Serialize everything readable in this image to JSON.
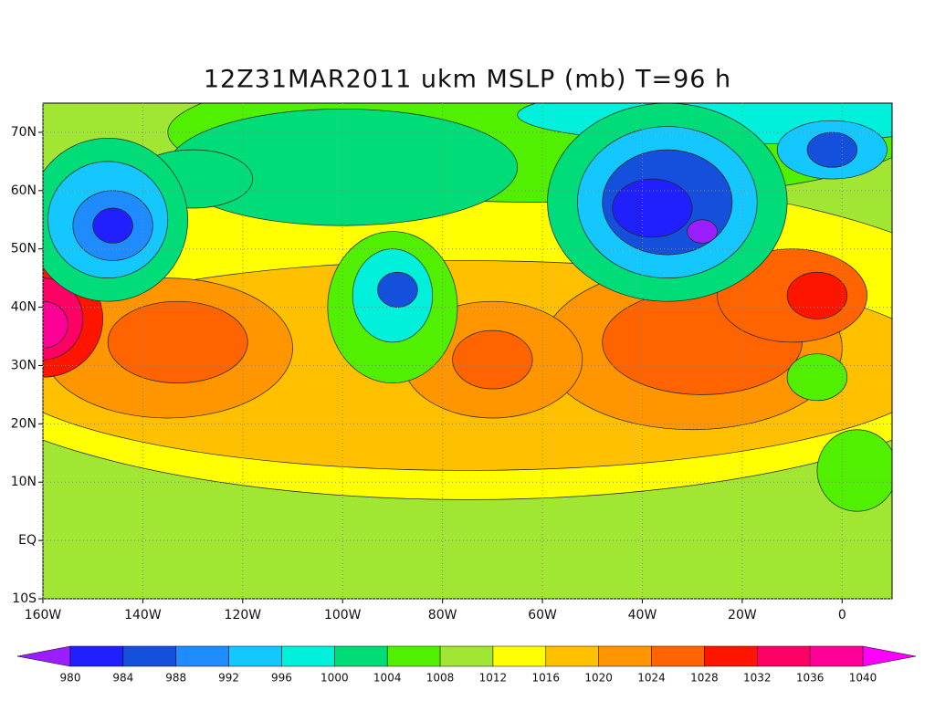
{
  "title": "12Z31MAR2011 ukm MSLP (mb) T=96 h",
  "map": {
    "xlim": [
      -160,
      10
    ],
    "ylim": [
      -10,
      75
    ],
    "xticks": [
      {
        "value": -160,
        "label": "160W"
      },
      {
        "value": -140,
        "label": "140W"
      },
      {
        "value": -120,
        "label": "120W"
      },
      {
        "value": -100,
        "label": "100W"
      },
      {
        "value": -80,
        "label": "80W"
      },
      {
        "value": -60,
        "label": "60W"
      },
      {
        "value": -40,
        "label": "40W"
      },
      {
        "value": -20,
        "label": "20W"
      },
      0
    ],
    "yticks": [
      {
        "value": -10,
        "label": "10S"
      },
      {
        "value": 0,
        "label": "EQ"
      },
      {
        "value": 10,
        "label": "10N"
      },
      {
        "value": 20,
        "label": "20N"
      },
      {
        "value": 30,
        "label": "30N"
      },
      {
        "value": 40,
        "label": "40N"
      },
      {
        "value": 50,
        "label": "50N"
      },
      {
        "value": 60,
        "label": "60N"
      },
      {
        "value": 70,
        "label": "70N"
      }
    ],
    "grid": true
  },
  "colorbar": {
    "levels": [
      980,
      984,
      988,
      992,
      996,
      1000,
      1004,
      1008,
      1012,
      1016,
      1020,
      1024,
      1028,
      1032,
      1036,
      1040
    ],
    "colors": [
      "#9a1eff",
      "#2020ff",
      "#1450dc",
      "#1e8cff",
      "#14c8ff",
      "#00f0dc",
      "#00dc78",
      "#50f000",
      "#a0e632",
      "#ffff00",
      "#ffc000",
      "#ff9600",
      "#ff6400",
      "#ff1400",
      "#ff0064",
      "#ff0096",
      "#ff00ff"
    ]
  }
}
